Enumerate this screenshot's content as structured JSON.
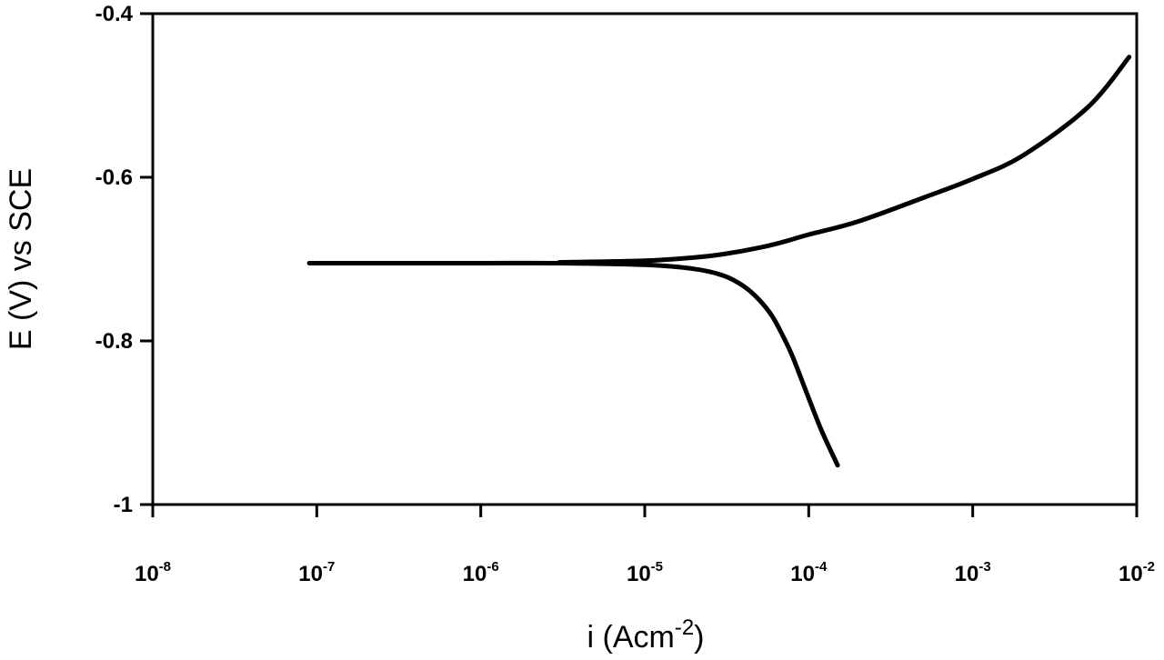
{
  "chart_data": {
    "type": "line",
    "xlabel": {
      "base": "i (Acm",
      "sup": "-2",
      "tail": ")"
    },
    "ylabel": "E (V) vs SCE",
    "x_scale": "log",
    "xlim": [
      1e-08,
      0.01
    ],
    "ylim": [
      -1,
      -0.4
    ],
    "x_ticks": [
      {
        "value": 1e-08,
        "base": "10",
        "exp": "-8"
      },
      {
        "value": 1e-07,
        "base": "10",
        "exp": "-7"
      },
      {
        "value": 1e-06,
        "base": "10",
        "exp": "-6"
      },
      {
        "value": 1e-05,
        "base": "10",
        "exp": "-5"
      },
      {
        "value": 0.0001,
        "base": "10",
        "exp": "-4"
      },
      {
        "value": 0.001,
        "base": "10",
        "exp": "-3"
      },
      {
        "value": 0.01,
        "base": "10",
        "exp": "-2"
      }
    ],
    "y_ticks": [
      {
        "value": -0.4,
        "label": "-0.4"
      },
      {
        "value": -0.6,
        "label": "-0.6"
      },
      {
        "value": -0.8,
        "label": "-0.8"
      },
      {
        "value": -1.0,
        "label": "-1"
      }
    ],
    "grid": false,
    "series": [
      {
        "color": "#000000",
        "x": [
          9e-08,
          3e-07,
          1e-06,
          3e-06,
          1e-05,
          2e-05,
          3e-05,
          4e-05,
          5e-05,
          6e-05,
          7e-05,
          8e-05,
          0.0001,
          0.00012,
          0.00015
        ],
        "y": [
          -0.705,
          -0.705,
          -0.705,
          -0.705,
          -0.707,
          -0.712,
          -0.72,
          -0.733,
          -0.75,
          -0.77,
          -0.795,
          -0.82,
          -0.87,
          -0.91,
          -0.952
        ]
      },
      {
        "color": "#000000",
        "x": [
          3e-06,
          1e-05,
          2e-05,
          3e-05,
          5e-05,
          7e-05,
          0.0001,
          0.0002,
          0.0005,
          0.001,
          0.002,
          0.005,
          0.009
        ],
        "y": [
          -0.704,
          -0.702,
          -0.698,
          -0.694,
          -0.686,
          -0.679,
          -0.67,
          -0.654,
          -0.625,
          -0.602,
          -0.574,
          -0.515,
          -0.453
        ]
      }
    ]
  }
}
